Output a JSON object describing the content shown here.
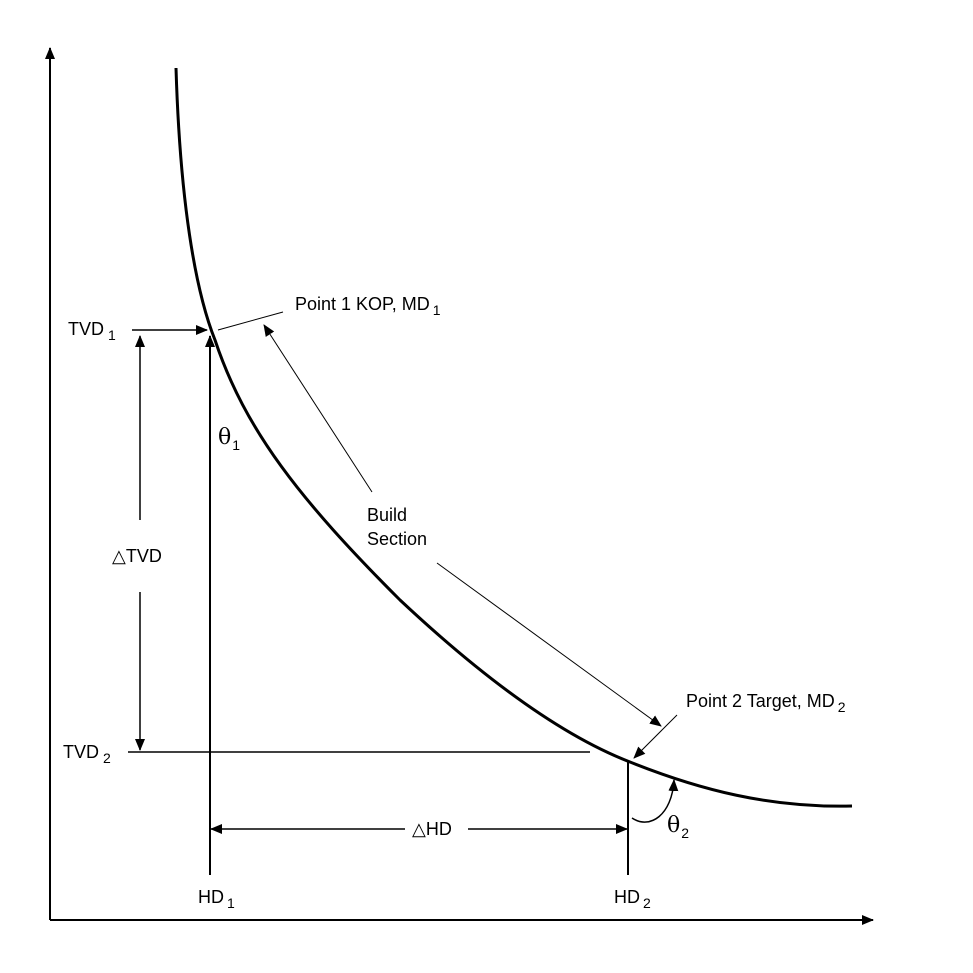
{
  "labels": {
    "tvd1": {
      "text": "TVD",
      "sub": "1"
    },
    "tvd2": {
      "text": "TVD",
      "sub": "2"
    },
    "point1": {
      "text": "Point 1 KOP, MD",
      "sub": "1"
    },
    "build_section": [
      "Build",
      "Section"
    ],
    "delta_tvd": "△TVD",
    "theta1": {
      "text": "θ",
      "sub": "1"
    },
    "point2": {
      "text": "Point 2 Target, MD",
      "sub": "2"
    },
    "delta_hd": "△HD",
    "theta2": {
      "text": "θ",
      "sub": "2"
    },
    "hd1": {
      "text": "HD",
      "sub": "1"
    },
    "hd2": {
      "text": "HD",
      "sub": "2"
    }
  }
}
